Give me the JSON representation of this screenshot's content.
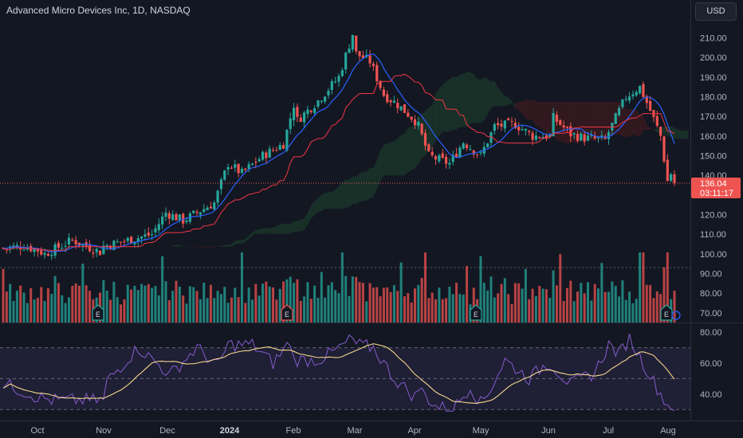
{
  "header": {
    "title": "Advanced Micro Devices Inc, 1D, NASDAQ",
    "currency": "USD"
  },
  "price_tag": {
    "price": "136.04",
    "countdown": "03:11:17"
  },
  "colors": {
    "background": "#131722",
    "up": "#26a69a",
    "down": "#ef5350",
    "ma": "#2962ff",
    "baseline": "#f23645",
    "rsi": "#7e57c2",
    "rsi_ma": "#f5d78e",
    "cloud_green": "#1b3a2b",
    "cloud_red": "#3d1a1f"
  },
  "chart_data": [
    {
      "type": "candlestick",
      "title": "Advanced Micro Devices Inc, 1D, NASDAQ",
      "x_ticks": [
        "Oct",
        "Nov",
        "Dec",
        "2024",
        "Feb",
        "Mar",
        "Apr",
        "May",
        "Jun",
        "Jul",
        "Aug"
      ],
      "y_ticks": [
        "70.00",
        "80.00",
        "90.00",
        "100.00",
        "110.00",
        "120.00",
        "130.00",
        "140.00",
        "150.00",
        "160.00",
        "170.00",
        "180.00",
        "190.00",
        "200.00",
        "210.00"
      ],
      "ylim": [
        70,
        217
      ],
      "last_price": 136.04,
      "monthly_close": [
        {
          "x": "Oct",
          "close": 102
        },
        {
          "x": "Nov",
          "close": 104
        },
        {
          "x": "Dec",
          "close": 121
        },
        {
          "x": "2024",
          "close": 146
        },
        {
          "x": "Feb",
          "close": 176
        },
        {
          "x": "Mar",
          "close": 202
        },
        {
          "x": "Apr",
          "close": 168
        },
        {
          "x": "May",
          "close": 150
        },
        {
          "x": "Jun",
          "close": 160
        },
        {
          "x": "Jul",
          "close": 162
        },
        {
          "x": "Aug",
          "close": 137
        }
      ],
      "earnings_markers": [
        "E",
        "E",
        "E",
        "E"
      ]
    },
    {
      "type": "line",
      "name": "RSI",
      "y_ticks": [
        "40.00",
        "60.00",
        "80.00"
      ],
      "ylim": [
        28,
        83
      ],
      "bands": [
        30,
        50,
        70
      ],
      "monthly_values": [
        {
          "x": "Oct",
          "rsi": 38
        },
        {
          "x": "Nov",
          "rsi": 36
        },
        {
          "x": "Dec",
          "rsi": 55
        },
        {
          "x": "2024",
          "rsi": 72
        },
        {
          "x": "Feb",
          "rsi": 62
        },
        {
          "x": "Mar",
          "rsi": 72
        },
        {
          "x": "Apr",
          "rsi": 38
        },
        {
          "x": "May",
          "rsi": 34
        },
        {
          "x": "Jun",
          "rsi": 60
        },
        {
          "x": "Jul",
          "rsi": 72
        },
        {
          "x": "Aug",
          "rsi": 33
        }
      ]
    }
  ]
}
